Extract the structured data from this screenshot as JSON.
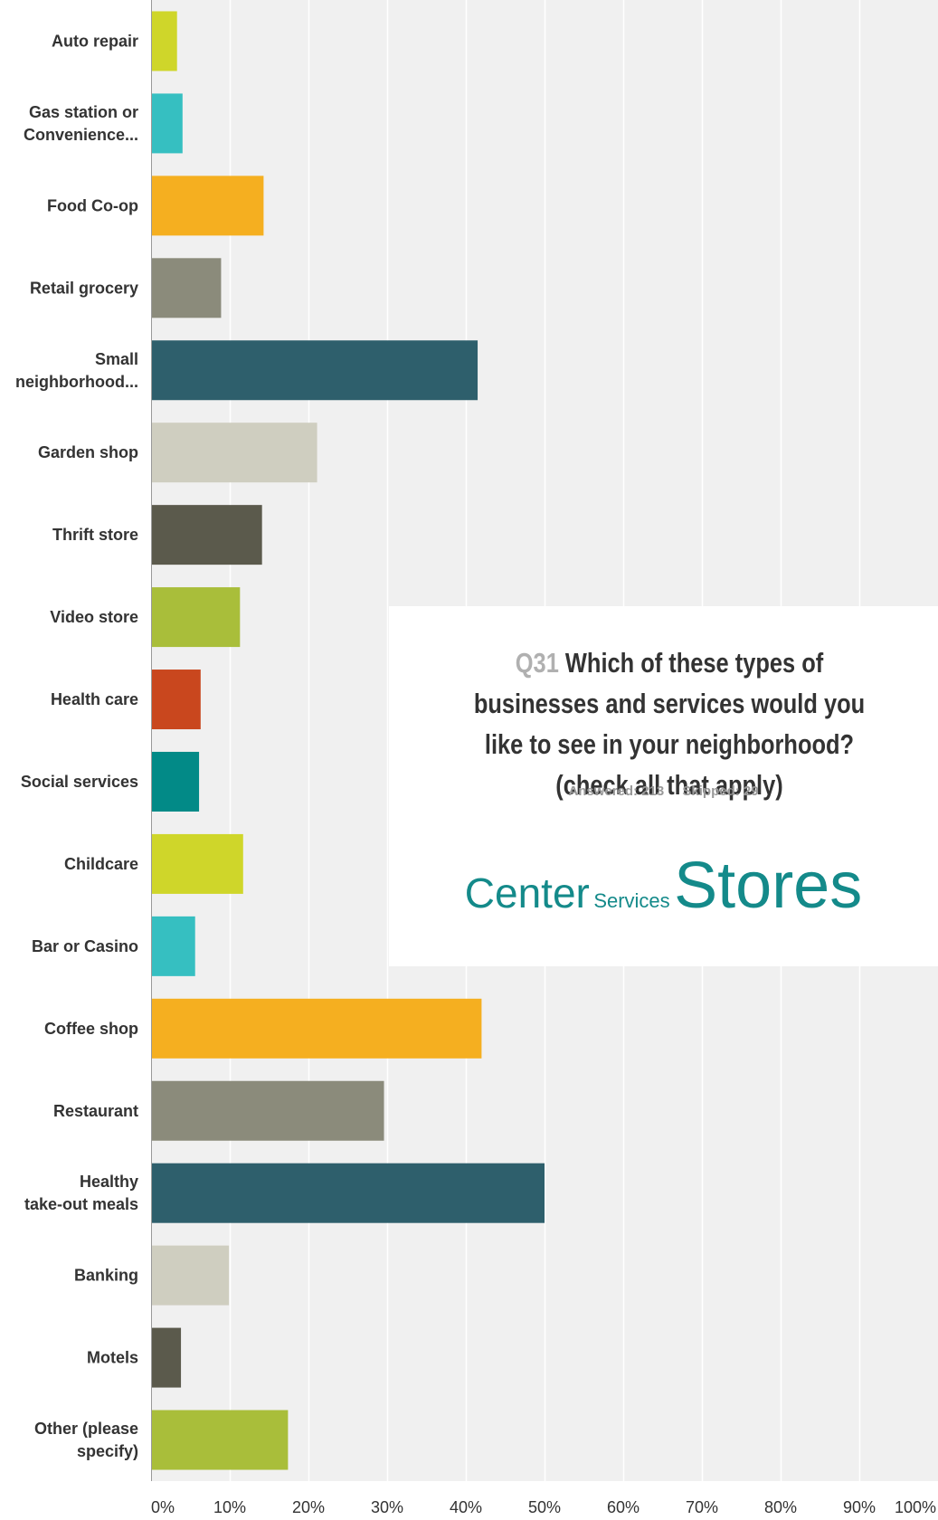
{
  "chart_data": {
    "type": "bar",
    "orientation": "horizontal",
    "title_prefix": "Q31",
    "title": "Which of these types of businesses and services would you like to see in your neighborhood? (check all that apply)",
    "answered": "Answered: 213",
    "skipped": "Skipped: 29",
    "categories": [
      [
        "Auto repair"
      ],
      [
        "Gas station or",
        "Convenience..."
      ],
      [
        "Food Co-op"
      ],
      [
        "Retail grocery"
      ],
      [
        "Small",
        "neighborhood..."
      ],
      [
        "Garden shop"
      ],
      [
        "Thrift store"
      ],
      [
        "Video store"
      ],
      [
        "Health care"
      ],
      [
        "Social services"
      ],
      [
        "Childcare"
      ],
      [
        "Bar or Casino"
      ],
      [
        "Coffee shop"
      ],
      [
        "Restaurant"
      ],
      [
        "Healthy",
        "take-out meals"
      ],
      [
        "Banking"
      ],
      [
        "Motels"
      ],
      [
        "Other (please",
        "specify)"
      ]
    ],
    "values": [
      3.3,
      4.0,
      14.3,
      8.9,
      41.5,
      21.1,
      14.1,
      11.3,
      6.3,
      6.1,
      11.7,
      5.6,
      42.0,
      29.6,
      50.0,
      9.9,
      3.8,
      17.4
    ],
    "colors": [
      "#cfd62a",
      "#36bfc1",
      "#f5af20",
      "#8b8b7b",
      "#2e5f6c",
      "#cfcec0",
      "#5b5a4c",
      "#a9be3a",
      "#c9471e",
      "#028a87",
      "#cfd62a",
      "#36bfc1",
      "#f5af20",
      "#8b8b7b",
      "#2e5f6c",
      "#cfcec0",
      "#5b5a4c",
      "#a9be3a"
    ],
    "x_ticks": [
      "0%",
      "10%",
      "20%",
      "30%",
      "40%",
      "50%",
      "60%",
      "70%",
      "80%",
      "90%",
      "100%"
    ],
    "xlim": [
      0,
      100
    ],
    "grid": true
  },
  "brand": {
    "word1": "Center",
    "word2": "Services",
    "word3": "Stores"
  }
}
